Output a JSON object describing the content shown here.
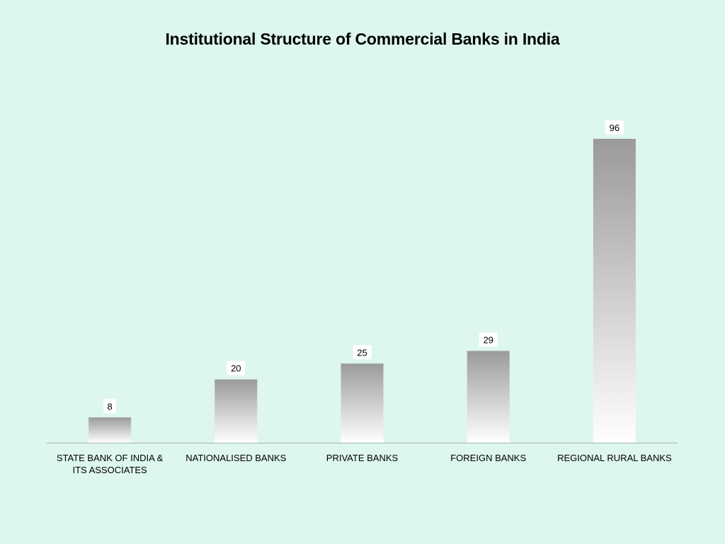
{
  "chart_data": {
    "type": "bar",
    "title": "Institutional Structure of Commercial Banks in India",
    "xlabel": "",
    "ylabel": "",
    "categories": [
      "STATE BANK OF INDIA & ITS ASSOCIATES",
      "NATIONALISED BANKS",
      "PRIVATE BANKS",
      "FOREIGN BANKS",
      "REGIONAL RURAL BANKS"
    ],
    "values": [
      8,
      20,
      25,
      29,
      96
    ],
    "ylim": [
      0,
      96
    ],
    "grid": false,
    "legend": "none",
    "colors": {
      "background": "#ddf6ef",
      "bar_top": "#9a9a9a",
      "bar_bottom": "#ffffff",
      "axis": "#a7b5ad",
      "label_box": "#ffffff"
    }
  }
}
